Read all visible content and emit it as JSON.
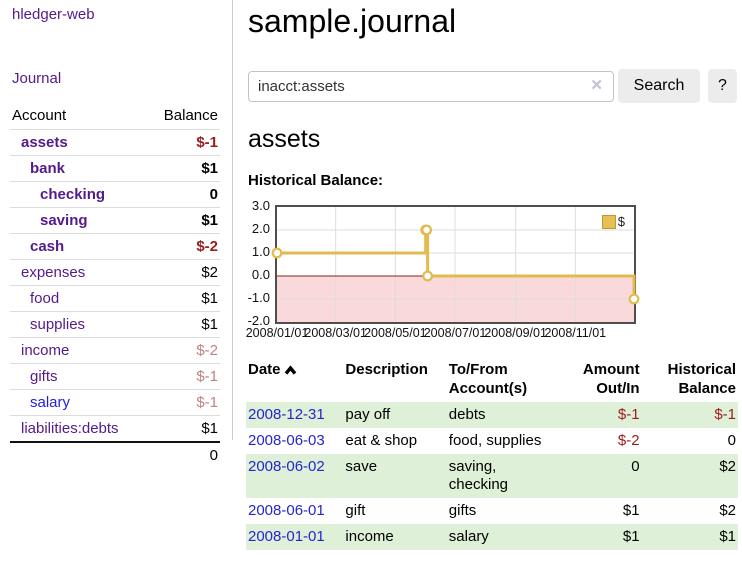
{
  "theme": {
    "link_purple": "#551a8b",
    "link_blue": "#2525cd",
    "link_bright_blue": "#1f1fe0",
    "negative_strong": "#9c1c1c",
    "negative_muted": "#c08181",
    "row_green": "#dff0d8",
    "text_black": "#000000"
  },
  "sidebar": {
    "brand": "hledger-web",
    "journal_link": "Journal",
    "account_header": "Account",
    "balance_header": "Balance",
    "rows": [
      {
        "account": "assets",
        "balance": "$-1",
        "level": 1,
        "bold": true,
        "balance_tone": "negative_strong",
        "link_tone": "link_purple"
      },
      {
        "account": "bank",
        "balance": "$1",
        "level": 2,
        "bold": true,
        "balance_tone": "text_black",
        "link_tone": "link_purple"
      },
      {
        "account": "checking",
        "balance": "0",
        "level": 3,
        "bold": true,
        "balance_tone": "text_black",
        "link_tone": "link_purple"
      },
      {
        "account": "saving",
        "balance": "$1",
        "level": 3,
        "bold": true,
        "balance_tone": "text_black",
        "link_tone": "link_purple"
      },
      {
        "account": "cash",
        "balance": "$-2",
        "level": 2,
        "bold": true,
        "balance_tone": "negative_strong",
        "link_tone": "link_purple"
      },
      {
        "account": "expenses",
        "balance": "$2",
        "level": 1,
        "bold": false,
        "balance_tone": "text_black",
        "link_tone": "link_purple"
      },
      {
        "account": "food",
        "balance": "$1",
        "level": 2,
        "bold": false,
        "balance_tone": "text_black",
        "link_tone": "link_purple"
      },
      {
        "account": "supplies",
        "balance": "$1",
        "level": 2,
        "bold": false,
        "balance_tone": "text_black",
        "link_tone": "link_purple"
      },
      {
        "account": "income",
        "balance": "$-2",
        "level": 1,
        "bold": false,
        "balance_tone": "negative_muted",
        "link_tone": "link_purple"
      },
      {
        "account": "gifts",
        "balance": "$-1",
        "level": 2,
        "bold": false,
        "balance_tone": "negative_muted",
        "link_tone": "link_purple"
      },
      {
        "account": "salary",
        "balance": "$-1",
        "level": 2,
        "bold": false,
        "balance_tone": "negative_muted",
        "link_tone": "link_bright_blue"
      },
      {
        "account": "liabilities:debts",
        "balance": "$1",
        "level": 1,
        "bold": false,
        "balance_tone": "text_black",
        "link_tone": "link_purple"
      }
    ],
    "total": "0"
  },
  "main": {
    "title": "sample.journal",
    "search": {
      "value": "inacct:assets",
      "clear_icon": "✕",
      "button_label": "Search",
      "help_label": "?"
    },
    "section_title": "assets",
    "chart_label": "Historical Balance:"
  },
  "chart_data": {
    "type": "line",
    "title": "Historical Balance",
    "step": true,
    "series": [
      {
        "name": "$",
        "points": [
          {
            "x": "2008-01-01",
            "y": 1
          },
          {
            "x": "2008-06-01",
            "y": 2
          },
          {
            "x": "2008-06-02",
            "y": 2
          },
          {
            "x": "2008-06-03",
            "y": 0
          },
          {
            "x": "2008-12-31",
            "y": -1
          }
        ]
      }
    ],
    "x_domain": [
      "2008-01-01",
      "2008-12-31"
    ],
    "x_ticks": [
      "2008/01/01",
      "2008/03/01",
      "2008/05/01",
      "2008/07/01",
      "2008/09/01",
      "2008/11/01"
    ],
    "y_ticks": [
      3.0,
      2.0,
      1.0,
      0.0,
      -1.0,
      -2.0
    ],
    "ylim": [
      -2,
      3
    ],
    "grid": true,
    "legend": {
      "label": "$",
      "position": "top-right"
    },
    "colors": {
      "line": "#e2ba4e",
      "marker_fill": "#ffffff",
      "negative_region": "#f9d9d9",
      "zero_line": "#8b2020",
      "gridline": "#dddddd"
    }
  },
  "register": {
    "headers": [
      "Date",
      "Description",
      "To/From Account(s)",
      "Amount Out/In",
      "Historical Balance"
    ],
    "rows": [
      {
        "date": "2008-12-31",
        "description": "pay off",
        "accounts": "debts",
        "amount": "$-1",
        "balance": "$-1"
      },
      {
        "date": "2008-06-03",
        "description": "eat & shop",
        "accounts": "food, supplies",
        "amount": "$-2",
        "balance": "0"
      },
      {
        "date": "2008-06-02",
        "description": "save",
        "accounts": "saving, checking",
        "amount": "0",
        "balance": "$2"
      },
      {
        "date": "2008-06-01",
        "description": "gift",
        "accounts": "gifts",
        "amount": "$1",
        "balance": "$2"
      },
      {
        "date": "2008-01-01",
        "description": "income",
        "accounts": "salary",
        "amount": "$1",
        "balance": "$1"
      }
    ]
  }
}
